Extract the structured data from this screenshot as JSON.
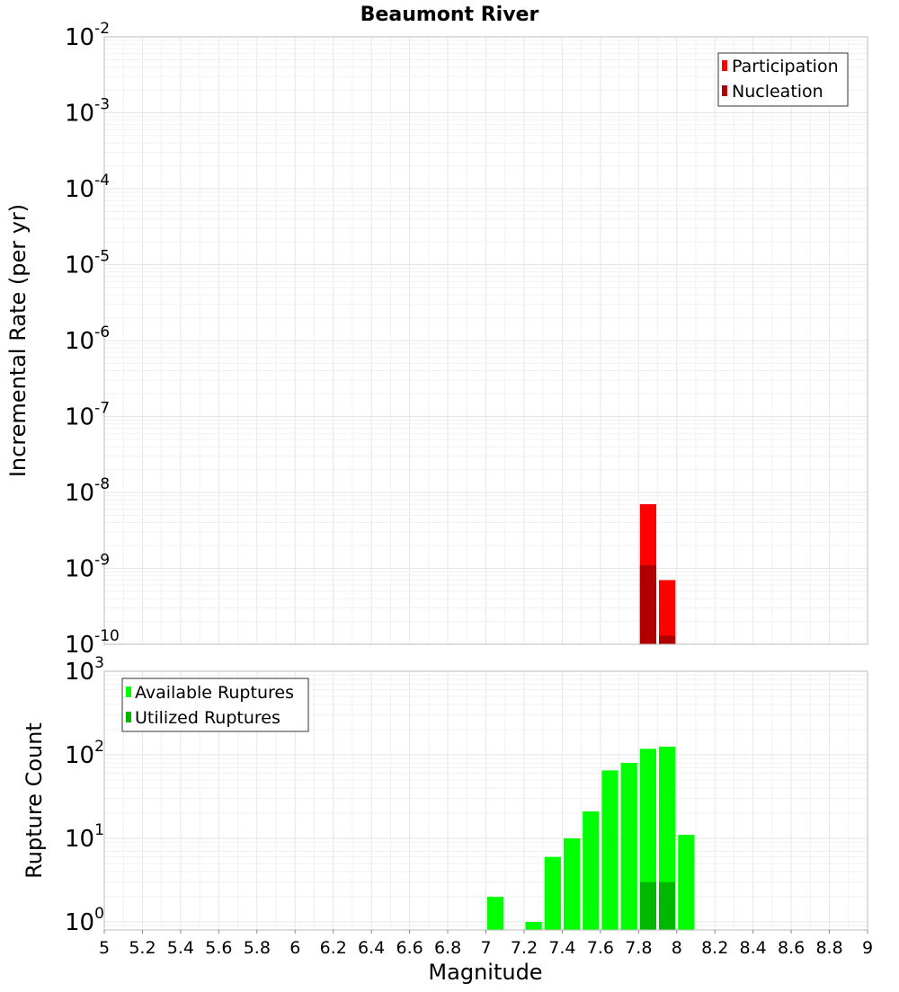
{
  "title": "Beaumont River",
  "xlabel": "Magnitude",
  "x_ticks": [
    "5",
    "5.2",
    "5.4",
    "5.6",
    "5.8",
    "6",
    "6.2",
    "6.4",
    "6.6",
    "6.8",
    "7",
    "7.2",
    "7.4",
    "7.6",
    "7.8",
    "8",
    "8.2",
    "8.4",
    "8.6",
    "8.8",
    "9"
  ],
  "colors": {
    "participation": "#ff0000",
    "nucleation": "#b00000",
    "available": "#00ff00",
    "utilized": "#00b800",
    "grid_major": "#e6e6e6",
    "grid_minor": "#f1f1f1",
    "frame": "#bbbbbb"
  },
  "chart_data": [
    {
      "type": "bar",
      "title": "Beaumont River",
      "xlabel": "",
      "ylabel": "Incremental Rate (per yr)",
      "y_scale": "log",
      "xlim": [
        5,
        9
      ],
      "ylim": [
        1e-10,
        0.01
      ],
      "y_tick_exponents": [
        "-2",
        "-3",
        "-4",
        "-5",
        "-6",
        "-7",
        "-8",
        "-9",
        "-10"
      ],
      "legend": {
        "placement": "top-right",
        "entries": [
          "Participation",
          "Nucleation"
        ]
      },
      "bin_width": 0.1,
      "series": [
        {
          "name": "Participation",
          "x": [
            7.85,
            7.95
          ],
          "values": [
            7e-09,
            7e-10
          ]
        },
        {
          "name": "Nucleation",
          "x": [
            7.85,
            7.95
          ],
          "values": [
            1.1e-09,
            1.3e-10
          ]
        }
      ]
    },
    {
      "type": "bar",
      "title": "",
      "xlabel": "Magnitude",
      "ylabel": "Rupture Count",
      "y_scale": "log",
      "xlim": [
        5,
        9
      ],
      "ylim": [
        0.8,
        1000
      ],
      "y_tick_exponents": [
        "3",
        "2",
        "1",
        "0"
      ],
      "legend": {
        "placement": "top-left",
        "entries": [
          "Available Ruptures",
          "Utilized Ruptures"
        ]
      },
      "bin_width": 0.1,
      "series": [
        {
          "name": "Available Ruptures",
          "x": [
            7.05,
            7.25,
            7.35,
            7.45,
            7.55,
            7.65,
            7.75,
            7.85,
            7.95,
            8.05
          ],
          "values": [
            2,
            1,
            6,
            10,
            21,
            65,
            80,
            118,
            125,
            11
          ]
        },
        {
          "name": "Utilized Ruptures",
          "x": [
            7.85,
            7.95
          ],
          "values": [
            3,
            3
          ]
        }
      ]
    }
  ]
}
